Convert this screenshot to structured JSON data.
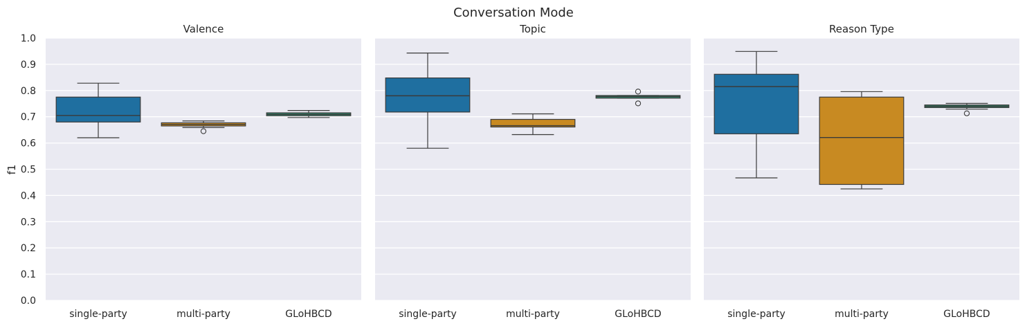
{
  "chart_data": {
    "type": "box",
    "title": "Conversation Mode",
    "ylabel": "f1",
    "ylim": [
      0.0,
      1.0
    ],
    "yticks": [
      "0.0",
      "0.1",
      "0.2",
      "0.3",
      "0.4",
      "0.5",
      "0.6",
      "0.7",
      "0.8",
      "0.9",
      "1.0"
    ],
    "grid": true,
    "categories": [
      "single-party",
      "multi-party",
      "GLoHBCD"
    ],
    "colors": [
      "#1f6fa0",
      "#c88a22",
      "#2e8a6c"
    ],
    "facets": [
      {
        "title": "Valence",
        "boxes": [
          {
            "category": "single-party",
            "whislo": 0.62,
            "q1": 0.68,
            "med": 0.705,
            "q3": 0.775,
            "whishi": 0.828,
            "fliers": []
          },
          {
            "category": "multi-party",
            "whislo": 0.659,
            "q1": 0.665,
            "med": 0.671,
            "q3": 0.677,
            "whishi": 0.684,
            "fliers": [
              0.645
            ]
          },
          {
            "category": "GLoHBCD",
            "whislo": 0.697,
            "q1": 0.704,
            "med": 0.709,
            "q3": 0.715,
            "whishi": 0.724,
            "fliers": []
          }
        ]
      },
      {
        "title": "Topic",
        "boxes": [
          {
            "category": "single-party",
            "whislo": 0.58,
            "q1": 0.718,
            "med": 0.78,
            "q3": 0.848,
            "whishi": 0.943,
            "fliers": []
          },
          {
            "category": "multi-party",
            "whislo": 0.632,
            "q1": 0.661,
            "med": 0.666,
            "q3": 0.69,
            "whishi": 0.711,
            "fliers": []
          },
          {
            "category": "GLoHBCD",
            "whislo": 0.771,
            "q1": 0.771,
            "med": 0.777,
            "q3": 0.781,
            "whishi": 0.781,
            "fliers": [
              0.796,
              0.751
            ]
          }
        ]
      },
      {
        "title": "Reason Type",
        "boxes": [
          {
            "category": "single-party",
            "whislo": 0.467,
            "q1": 0.635,
            "med": 0.815,
            "q3": 0.862,
            "whishi": 0.949,
            "fliers": []
          },
          {
            "category": "multi-party",
            "whislo": 0.425,
            "q1": 0.442,
            "med": 0.621,
            "q3": 0.775,
            "whishi": 0.796,
            "fliers": []
          },
          {
            "category": "GLoHBCD",
            "whislo": 0.729,
            "q1": 0.735,
            "med": 0.74,
            "q3": 0.745,
            "whishi": 0.751,
            "fliers": [
              0.713
            ]
          }
        ]
      }
    ]
  }
}
